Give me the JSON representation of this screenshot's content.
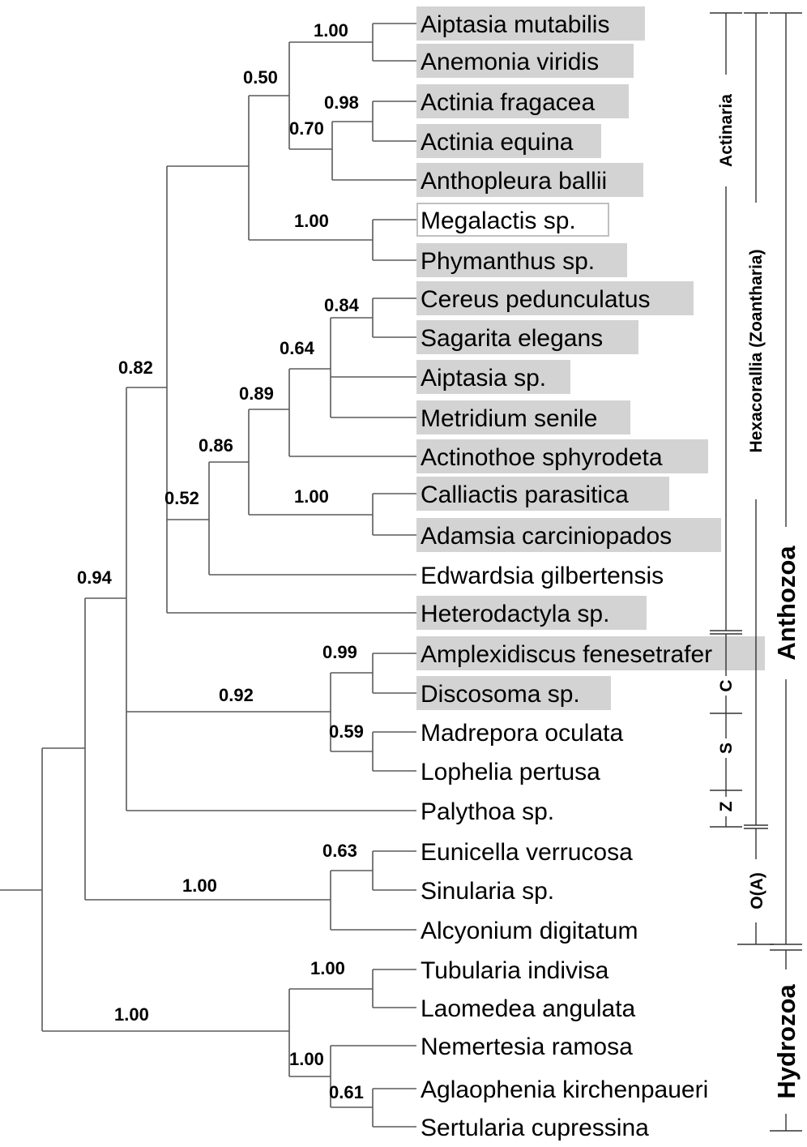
{
  "taxa": [
    {
      "name": "Aiptasia mutabilis",
      "highlight": "gray"
    },
    {
      "name": "Anemonia viridis",
      "highlight": "gray"
    },
    {
      "name": "Actinia fragacea",
      "highlight": "gray"
    },
    {
      "name": "Actinia equina",
      "highlight": "gray"
    },
    {
      "name": "Anthopleura ballii",
      "highlight": "gray"
    },
    {
      "name": "Megalactis sp.",
      "highlight": "outline"
    },
    {
      "name": "Phymanthus sp.",
      "highlight": "gray"
    },
    {
      "name": "Cereus pedunculatus",
      "highlight": "gray"
    },
    {
      "name": "Sagarita elegans",
      "highlight": "gray"
    },
    {
      "name": "Aiptasia sp.",
      "highlight": "gray"
    },
    {
      "name": "Metridium senile",
      "highlight": "gray"
    },
    {
      "name": "Actinothoe sphyrodeta",
      "highlight": "gray"
    },
    {
      "name": "Calliactis parasitica",
      "highlight": "gray"
    },
    {
      "name": "Adamsia carciniopados",
      "highlight": "gray"
    },
    {
      "name": "Edwardsia gilbertensis",
      "highlight": "none"
    },
    {
      "name": "Heterodactyla sp.",
      "highlight": "gray"
    },
    {
      "name": "Amplexidiscus fenesetrafer",
      "highlight": "gray"
    },
    {
      "name": "Discosoma sp.",
      "highlight": "gray"
    },
    {
      "name": "Madrepora oculata",
      "highlight": "none"
    },
    {
      "name": "Lophelia pertusa",
      "highlight": "none"
    },
    {
      "name": "Palythoa sp.",
      "highlight": "none"
    },
    {
      "name": "Eunicella verrucosa",
      "highlight": "none"
    },
    {
      "name": "Sinularia sp.",
      "highlight": "none"
    },
    {
      "name": "Alcyonium digitatum",
      "highlight": "none"
    },
    {
      "name": "Tubularia indivisa",
      "highlight": "none"
    },
    {
      "name": "Laomedea angulata",
      "highlight": "none"
    },
    {
      "name": "Nemertesia ramosa",
      "highlight": "none"
    },
    {
      "name": "Aglaophenia kirchenpaueri",
      "highlight": "none"
    },
    {
      "name": "Sertularia cupressina",
      "highlight": "none"
    }
  ],
  "support_values": [
    "1.00",
    "0.50",
    "0.98",
    "0.70",
    "1.00",
    "0.82",
    "0.84",
    "0.64",
    "0.89",
    "0.86",
    "0.52",
    "1.00",
    "0.94",
    "0.99",
    "0.92",
    "0.59",
    "0.63",
    "1.00",
    "1.00",
    "1.00",
    "1.00",
    "0.61"
  ],
  "groups": {
    "actinaria": "Actinaria",
    "hexacorallia": "Hexacorallia (Zoantharia)",
    "anthozoa": "Anthozoa",
    "hydrozoa": "Hydrozoa",
    "c": "C",
    "s": "S",
    "z": "Z",
    "octocorallia": "O(A)"
  },
  "colors": {
    "highlight": "#d3d3d3",
    "outline": "#c0c0c0",
    "branch": "#5a5a5a"
  }
}
